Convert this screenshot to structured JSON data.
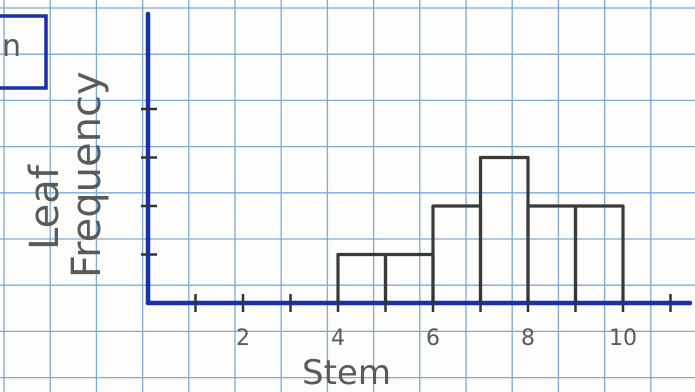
{
  "corner_label": "n",
  "chart_data": {
    "type": "bar",
    "title": "",
    "xlabel": "Stem",
    "ylabel": "Leaf Frequency",
    "ylabel_lines": [
      "Leaf",
      "Frequency"
    ],
    "x_tick_labels": [
      "2",
      "4",
      "6",
      "8",
      "10"
    ],
    "x_tick_values": [
      2,
      4,
      6,
      8,
      10
    ],
    "bins": [
      {
        "stem": 5,
        "frequency": 1
      },
      {
        "stem": 6,
        "frequency": 1
      },
      {
        "stem": 7,
        "frequency": 2
      },
      {
        "stem": 8,
        "frequency": 3
      },
      {
        "stem": 9,
        "frequency": 2
      },
      {
        "stem": 10,
        "frequency": 2
      }
    ],
    "xlim": [
      0,
      11
    ],
    "ylim": [
      0,
      4
    ],
    "grid": true,
    "colors": {
      "axis": "#1a2fb0",
      "bars": "#3a3a3a",
      "grid": "#7fa8d9"
    }
  }
}
